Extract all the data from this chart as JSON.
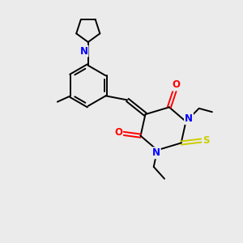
{
  "background_color": "#ebebeb",
  "atom_colors": {
    "N": "#0000ff",
    "O": "#ff0000",
    "S": "#cccc00"
  },
  "bond_color": "#000000",
  "figsize": [
    3.0,
    3.0
  ],
  "dpi": 100
}
